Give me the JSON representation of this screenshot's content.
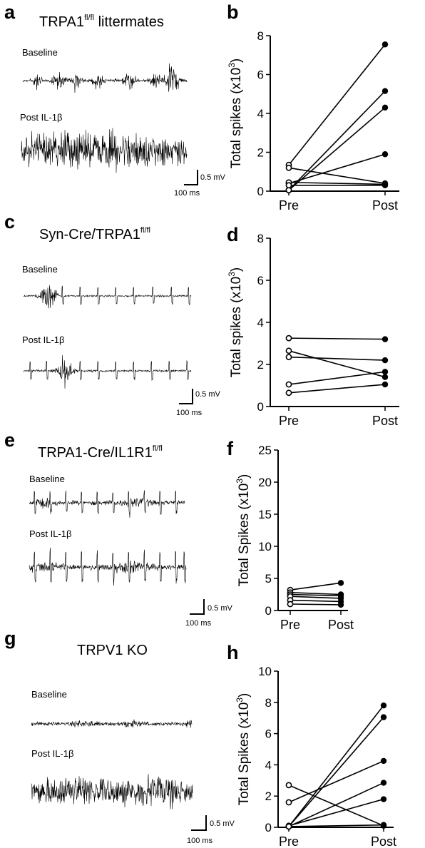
{
  "panels": {
    "a": {
      "letter": "a",
      "title": "TRPA1",
      "title_sup": "fl/fl",
      "title_suffix": " littermates",
      "baseline_label": "Baseline",
      "post_label": "Post IL-1β",
      "scale_mv": "0.5 mV",
      "scale_ms": "100 ms"
    },
    "c": {
      "letter": "c",
      "title": "Syn-Cre/TRPA1",
      "title_sup": "fl/fl",
      "title_suffix": "",
      "baseline_label": "Baseline",
      "post_label": "Post IL-1β",
      "scale_mv": "0.5 mV",
      "scale_ms": "100 ms"
    },
    "e": {
      "letter": "e",
      "title": "TRPA1-Cre/IL1R1",
      "title_sup": "fl/fl",
      "title_suffix": "",
      "baseline_label": "Baseline",
      "post_label": "Post IL-1β",
      "scale_mv": "0.5 mV",
      "scale_ms": "100 ms"
    },
    "g": {
      "letter": "g",
      "title": "TRPV1 KO",
      "title_sup": "",
      "title_suffix": "",
      "baseline_label": "Baseline",
      "post_label": "Post IL-1β",
      "scale_mv": "0.5 mV",
      "scale_ms": "100 ms"
    }
  },
  "chart_letters": {
    "b": "b",
    "d": "d",
    "f": "f",
    "h": "h"
  },
  "chart_data": [
    {
      "panel": "b",
      "type": "scatter",
      "categories": [
        "Pre",
        "Post"
      ],
      "ylabel": "Total spikes (x10",
      "ylabel_sup": "3",
      "ylabel_close": ")",
      "ylim": [
        0,
        8
      ],
      "yticks": [
        0,
        2,
        4,
        6,
        8
      ],
      "pairs": [
        [
          1.35,
          7.55
        ],
        [
          1.2,
          0.4
        ],
        [
          0.05,
          5.15
        ],
        [
          0.05,
          4.3
        ],
        [
          0.4,
          1.9
        ],
        [
          0.45,
          0.35
        ],
        [
          0.3,
          0.3
        ]
      ]
    },
    {
      "panel": "d",
      "type": "scatter",
      "categories": [
        "Pre",
        "Post"
      ],
      "ylabel": "Total spikes (x10",
      "ylabel_sup": "3",
      "ylabel_close": ")",
      "ylim": [
        0,
        8
      ],
      "yticks": [
        0,
        2,
        4,
        6,
        8
      ],
      "pairs": [
        [
          3.25,
          3.2
        ],
        [
          2.65,
          1.4
        ],
        [
          2.35,
          2.2
        ],
        [
          1.05,
          1.65
        ],
        [
          0.65,
          1.05
        ]
      ]
    },
    {
      "panel": "f",
      "type": "scatter",
      "categories": [
        "Pre",
        "Post"
      ],
      "ylabel": "Total Spikes (x10",
      "ylabel_sup": "3",
      "ylabel_close": ")",
      "ylim": [
        0,
        25
      ],
      "yticks": [
        0,
        5,
        10,
        15,
        20,
        25
      ],
      "pairs": [
        [
          3.2,
          4.3
        ],
        [
          2.8,
          2.5
        ],
        [
          2.5,
          2.3
        ],
        [
          2.2,
          1.9
        ],
        [
          1.6,
          1.4
        ],
        [
          1.0,
          0.9
        ]
      ]
    },
    {
      "panel": "h",
      "type": "scatter",
      "categories": [
        "Pre",
        "Post"
      ],
      "ylabel": "Total Spikes (x10",
      "ylabel_sup": "3",
      "ylabel_close": ")",
      "ylim": [
        0,
        10
      ],
      "yticks": [
        0,
        2,
        4,
        6,
        8,
        10
      ],
      "pairs": [
        [
          2.7,
          0.1
        ],
        [
          1.6,
          4.25
        ],
        [
          0.05,
          7.8
        ],
        [
          0.05,
          7.05
        ],
        [
          0.05,
          2.85
        ],
        [
          0.1,
          1.8
        ],
        [
          0.05,
          0.15
        ]
      ]
    }
  ]
}
